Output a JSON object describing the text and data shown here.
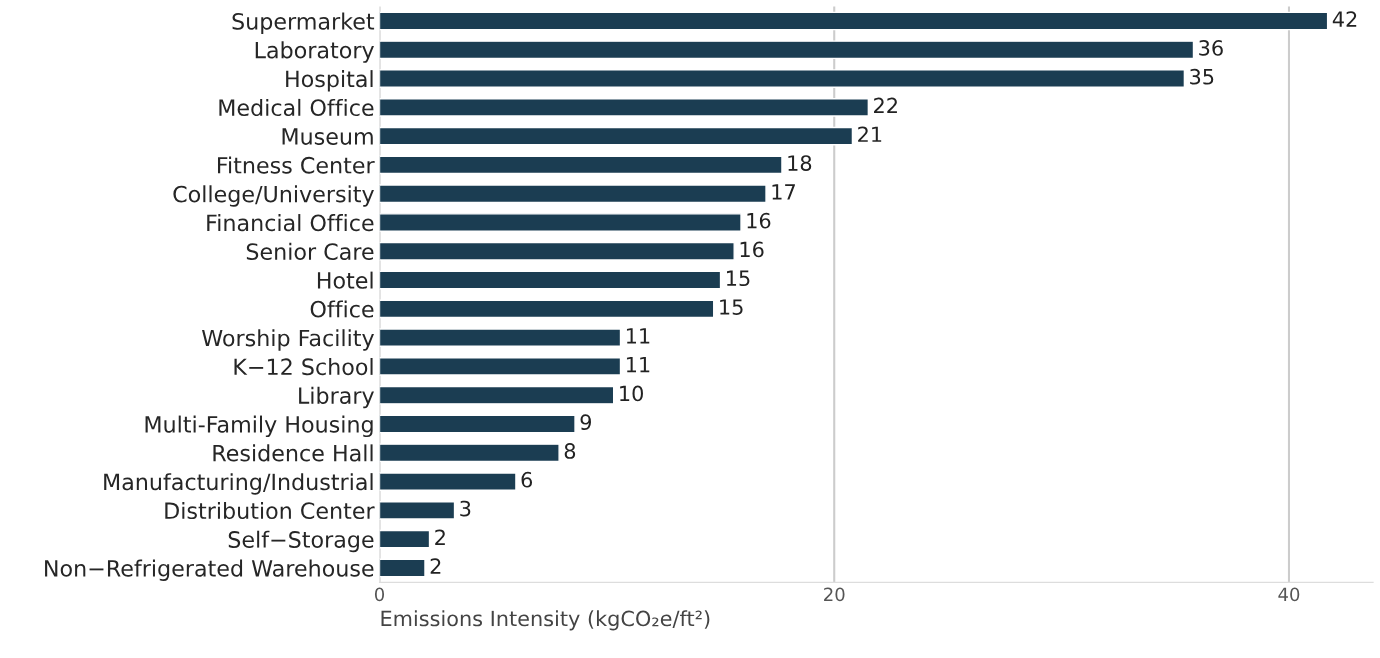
{
  "chart_data": {
    "type": "bar",
    "orientation": "horizontal",
    "xlabel": "Emissions Intensity (kgCO₂e/ft²)",
    "categories": [
      "Supermarket",
      "Laboratory",
      "Hospital",
      "Medical Office",
      "Museum",
      "Fitness Center",
      "College/University",
      "Financial Office",
      "Senior Care",
      "Hotel",
      "Office",
      "Worship Facility",
      "K−12 School",
      "Library",
      "Multi-Family Housing",
      "Residence Hall",
      "Manufacturing/Industrial",
      "Distribution Center",
      "Self−Storage",
      "Non−Refrigerated Warehouse"
    ],
    "values": [
      41.7,
      35.8,
      35.4,
      21.5,
      20.8,
      17.7,
      17.0,
      15.9,
      15.6,
      15.0,
      14.7,
      10.6,
      10.6,
      10.3,
      8.6,
      7.9,
      6.0,
      3.3,
      2.2,
      2.0
    ],
    "value_labels": [
      "42",
      "36",
      "35",
      "22",
      "21",
      "18",
      "17",
      "16",
      "16",
      "15",
      "15",
      "11",
      "11",
      "10",
      "9",
      "8",
      "6",
      "3",
      "2",
      "2"
    ],
    "color": "#1b3d52",
    "xlim": [
      0,
      43.7
    ],
    "xticks": [
      0,
      20,
      40
    ],
    "grid": "x"
  }
}
